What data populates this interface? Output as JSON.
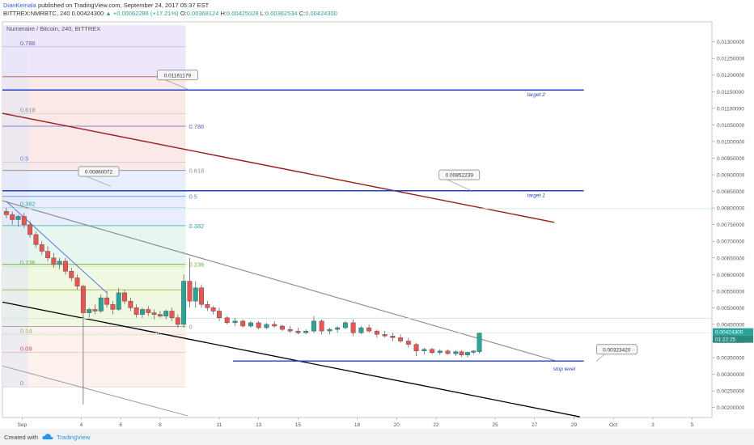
{
  "header": {
    "author": "DianKemala",
    "published": " published on TradingView.com, September 24, 2017 05:37 EST",
    "symbol": "BITTREX:NMRBTC, 240",
    "last": "0.00424300",
    "change": "▲ +0.00062286 (+17.21%)",
    "o_label": "O:",
    "o_value": "0.00368124",
    "h_label": "H:",
    "h_value": "0.00425028",
    "l_label": "L:",
    "l_value": "0.00362534",
    "c_label": "C:",
    "c_value": "0.00424300"
  },
  "footer": {
    "created": "Created with",
    "brand": "TradingView"
  },
  "colors": {
    "up": "#26a69a",
    "down": "#ef5350",
    "target": "#1e3fd0",
    "red_trend": "#9a1c1c"
  },
  "chart_data": {
    "type": "candlestick",
    "title": "Numeraire / Bitcoin, 240, BITTREX",
    "ylim": [
      0.0017,
      0.0136
    ],
    "x_range_days": [
      0,
      36
    ],
    "x_ticks": [
      {
        "day": 1,
        "label": "Sep"
      },
      {
        "day": 4,
        "label": "4"
      },
      {
        "day": 6,
        "label": "6"
      },
      {
        "day": 8,
        "label": "8"
      },
      {
        "day": 11,
        "label": "11"
      },
      {
        "day": 13,
        "label": "13"
      },
      {
        "day": 15,
        "label": "15"
      },
      {
        "day": 18,
        "label": "18"
      },
      {
        "day": 20,
        "label": "20"
      },
      {
        "day": 22,
        "label": "22"
      },
      {
        "day": 25,
        "label": "25"
      },
      {
        "day": 27,
        "label": "27"
      },
      {
        "day": 29,
        "label": "29"
      },
      {
        "day": 31,
        "label": "Oct"
      },
      {
        "day": 33,
        "label": "3"
      },
      {
        "day": 35,
        "label": "5"
      }
    ],
    "y_ticks": [
      "0.01300000",
      "0.01250000",
      "0.01200000",
      "0.01150000",
      "0.01100000",
      "0.01050000",
      "0.01000000",
      "0.00950000",
      "0.00900000",
      "0.00850000",
      "0.00800000",
      "0.00750000",
      "0.00700000",
      "0.00650000",
      "0.00600000",
      "0.00550000",
      "0.00500000",
      "0.00450000",
      "0.00400000",
      "0.00350000",
      "0.00300000",
      "0.00250000",
      "0.00200000"
    ],
    "last_price_label": "0.00424300",
    "countdown_label": "01:22:25",
    "candles": [
      {
        "d": 0.2,
        "o": 0.0079,
        "h": 0.008,
        "l": 0.0077,
        "c": 0.0078
      },
      {
        "d": 0.5,
        "o": 0.0078,
        "h": 0.0079,
        "l": 0.0075,
        "c": 0.00765
      },
      {
        "d": 0.8,
        "o": 0.00765,
        "h": 0.0078,
        "l": 0.00745,
        "c": 0.00775
      },
      {
        "d": 1.1,
        "o": 0.00775,
        "h": 0.00785,
        "l": 0.0074,
        "c": 0.0075
      },
      {
        "d": 1.4,
        "o": 0.0075,
        "h": 0.0076,
        "l": 0.0071,
        "c": 0.0072
      },
      {
        "d": 1.7,
        "o": 0.0072,
        "h": 0.0073,
        "l": 0.0068,
        "c": 0.0069
      },
      {
        "d": 2.0,
        "o": 0.0069,
        "h": 0.007,
        "l": 0.0066,
        "c": 0.0067
      },
      {
        "d": 2.3,
        "o": 0.0067,
        "h": 0.00685,
        "l": 0.0064,
        "c": 0.0065
      },
      {
        "d": 2.6,
        "o": 0.0065,
        "h": 0.00665,
        "l": 0.0062,
        "c": 0.0063
      },
      {
        "d": 2.9,
        "o": 0.0063,
        "h": 0.0065,
        "l": 0.00615,
        "c": 0.0064
      },
      {
        "d": 3.2,
        "o": 0.0064,
        "h": 0.0065,
        "l": 0.006,
        "c": 0.0061
      },
      {
        "d": 3.5,
        "o": 0.0061,
        "h": 0.0062,
        "l": 0.0058,
        "c": 0.0059
      },
      {
        "d": 3.8,
        "o": 0.0059,
        "h": 0.006,
        "l": 0.00555,
        "c": 0.00565
      },
      {
        "d": 4.1,
        "o": 0.00565,
        "h": 0.0057,
        "l": 0.0021,
        "c": 0.00485
      },
      {
        "d": 4.4,
        "o": 0.00485,
        "h": 0.005,
        "l": 0.0047,
        "c": 0.00495
      },
      {
        "d": 4.7,
        "o": 0.00495,
        "h": 0.0051,
        "l": 0.0048,
        "c": 0.0049
      },
      {
        "d": 5.0,
        "o": 0.0049,
        "h": 0.0054,
        "l": 0.00485,
        "c": 0.0053
      },
      {
        "d": 5.3,
        "o": 0.0053,
        "h": 0.0055,
        "l": 0.005,
        "c": 0.0051
      },
      {
        "d": 5.6,
        "o": 0.0051,
        "h": 0.0052,
        "l": 0.0048,
        "c": 0.00495
      },
      {
        "d": 5.9,
        "o": 0.00495,
        "h": 0.0056,
        "l": 0.0049,
        "c": 0.00545
      },
      {
        "d": 6.2,
        "o": 0.00545,
        "h": 0.00555,
        "l": 0.0051,
        "c": 0.0052
      },
      {
        "d": 6.5,
        "o": 0.0052,
        "h": 0.0053,
        "l": 0.0049,
        "c": 0.005
      },
      {
        "d": 6.8,
        "o": 0.005,
        "h": 0.0051,
        "l": 0.0047,
        "c": 0.0048
      },
      {
        "d": 7.1,
        "o": 0.0048,
        "h": 0.005,
        "l": 0.0047,
        "c": 0.00495
      },
      {
        "d": 7.4,
        "o": 0.00495,
        "h": 0.00505,
        "l": 0.00475,
        "c": 0.00485
      },
      {
        "d": 7.7,
        "o": 0.00485,
        "h": 0.00495,
        "l": 0.00465,
        "c": 0.0048
      },
      {
        "d": 8.0,
        "o": 0.0048,
        "h": 0.0049,
        "l": 0.0047,
        "c": 0.00475
      },
      {
        "d": 8.3,
        "o": 0.00475,
        "h": 0.00495,
        "l": 0.00465,
        "c": 0.0049
      },
      {
        "d": 8.6,
        "o": 0.0049,
        "h": 0.005,
        "l": 0.0046,
        "c": 0.0047
      },
      {
        "d": 8.9,
        "o": 0.0047,
        "h": 0.0048,
        "l": 0.0044,
        "c": 0.0045
      },
      {
        "d": 9.2,
        "o": 0.0045,
        "h": 0.006,
        "l": 0.0044,
        "c": 0.0058
      },
      {
        "d": 9.5,
        "o": 0.0058,
        "h": 0.0065,
        "l": 0.005,
        "c": 0.0052
      },
      {
        "d": 9.8,
        "o": 0.0052,
        "h": 0.0058,
        "l": 0.005,
        "c": 0.0056
      },
      {
        "d": 10.1,
        "o": 0.0056,
        "h": 0.0057,
        "l": 0.005,
        "c": 0.0051
      },
      {
        "d": 10.4,
        "o": 0.0051,
        "h": 0.0052,
        "l": 0.0049,
        "c": 0.005
      },
      {
        "d": 10.7,
        "o": 0.005,
        "h": 0.00505,
        "l": 0.0048,
        "c": 0.0049
      },
      {
        "d": 11.0,
        "o": 0.0049,
        "h": 0.005,
        "l": 0.0046,
        "c": 0.0047
      },
      {
        "d": 11.4,
        "o": 0.0047,
        "h": 0.00475,
        "l": 0.0045,
        "c": 0.00455
      },
      {
        "d": 11.8,
        "o": 0.00455,
        "h": 0.0047,
        "l": 0.00445,
        "c": 0.0046
      },
      {
        "d": 12.2,
        "o": 0.0046,
        "h": 0.00465,
        "l": 0.0044,
        "c": 0.00445
      },
      {
        "d": 12.6,
        "o": 0.00445,
        "h": 0.0046,
        "l": 0.0044,
        "c": 0.00455
      },
      {
        "d": 13.0,
        "o": 0.00455,
        "h": 0.0046,
        "l": 0.00435,
        "c": 0.0044
      },
      {
        "d": 13.4,
        "o": 0.0044,
        "h": 0.00455,
        "l": 0.00435,
        "c": 0.0045
      },
      {
        "d": 13.8,
        "o": 0.0045,
        "h": 0.0046,
        "l": 0.0044,
        "c": 0.00445
      },
      {
        "d": 14.2,
        "o": 0.00445,
        "h": 0.0045,
        "l": 0.0043,
        "c": 0.00435
      },
      {
        "d": 14.6,
        "o": 0.00435,
        "h": 0.00445,
        "l": 0.00425,
        "c": 0.0043
      },
      {
        "d": 15.0,
        "o": 0.0043,
        "h": 0.0044,
        "l": 0.0042,
        "c": 0.00425
      },
      {
        "d": 15.4,
        "o": 0.00425,
        "h": 0.00435,
        "l": 0.0042,
        "c": 0.0043
      },
      {
        "d": 15.8,
        "o": 0.0043,
        "h": 0.00475,
        "l": 0.00425,
        "c": 0.0046
      },
      {
        "d": 16.2,
        "o": 0.0046,
        "h": 0.00465,
        "l": 0.0042,
        "c": 0.0043
      },
      {
        "d": 16.6,
        "o": 0.0043,
        "h": 0.0044,
        "l": 0.0042,
        "c": 0.00435
      },
      {
        "d": 17.0,
        "o": 0.00435,
        "h": 0.00445,
        "l": 0.00425,
        "c": 0.0044
      },
      {
        "d": 17.4,
        "o": 0.0044,
        "h": 0.0046,
        "l": 0.00435,
        "c": 0.00455
      },
      {
        "d": 17.8,
        "o": 0.00455,
        "h": 0.00465,
        "l": 0.00415,
        "c": 0.00425
      },
      {
        "d": 18.2,
        "o": 0.00425,
        "h": 0.00445,
        "l": 0.0042,
        "c": 0.0044
      },
      {
        "d": 18.6,
        "o": 0.0044,
        "h": 0.0045,
        "l": 0.00425,
        "c": 0.0043
      },
      {
        "d": 19.0,
        "o": 0.0043,
        "h": 0.00435,
        "l": 0.0041,
        "c": 0.0042
      },
      {
        "d": 19.4,
        "o": 0.0042,
        "h": 0.0043,
        "l": 0.0041,
        "c": 0.00415
      },
      {
        "d": 19.8,
        "o": 0.00415,
        "h": 0.00425,
        "l": 0.004,
        "c": 0.0041
      },
      {
        "d": 20.2,
        "o": 0.0041,
        "h": 0.0042,
        "l": 0.00395,
        "c": 0.004
      },
      {
        "d": 20.6,
        "o": 0.004,
        "h": 0.0041,
        "l": 0.0038,
        "c": 0.0039
      },
      {
        "d": 21.0,
        "o": 0.0039,
        "h": 0.00395,
        "l": 0.00355,
        "c": 0.0037
      },
      {
        "d": 21.4,
        "o": 0.0037,
        "h": 0.0038,
        "l": 0.0036,
        "c": 0.00375
      },
      {
        "d": 21.8,
        "o": 0.00375,
        "h": 0.0038,
        "l": 0.0036,
        "c": 0.00365
      },
      {
        "d": 22.2,
        "o": 0.00365,
        "h": 0.00375,
        "l": 0.00358,
        "c": 0.0037
      },
      {
        "d": 22.6,
        "o": 0.0037,
        "h": 0.00375,
        "l": 0.0036,
        "c": 0.00362
      },
      {
        "d": 23.0,
        "o": 0.00362,
        "h": 0.00372,
        "l": 0.00355,
        "c": 0.00368
      },
      {
        "d": 23.3,
        "o": 0.00368,
        "h": 0.00372,
        "l": 0.00352,
        "c": 0.00358
      },
      {
        "d": 23.6,
        "o": 0.00358,
        "h": 0.00368,
        "l": 0.0035,
        "c": 0.00366
      },
      {
        "d": 23.9,
        "o": 0.00366,
        "h": 0.00372,
        "l": 0.0036,
        "c": 0.0037
      },
      {
        "d": 24.2,
        "o": 0.00368,
        "h": 0.00425,
        "l": 0.00362,
        "c": 0.00424
      }
    ],
    "fib_levels_left": [
      {
        "label": "0.786",
        "price": 0.01285
      },
      {
        "label": "0.618",
        "price": 0.01084
      },
      {
        "label": "0.5",
        "price": 0.00938
      },
      {
        "label": "0.382",
        "price": 0.00802
      },
      {
        "label": "0.236",
        "price": 0.00625
      },
      {
        "label": "0.14",
        "price": 0.0042
      },
      {
        "label": "0.09",
        "price": 0.00366
      },
      {
        "label": "0",
        "price": 0.00262
      }
    ],
    "fib_levels_mid": [
      {
        "label": "1",
        "price": 0.01195
      },
      {
        "label": "0.786",
        "price": 0.01046
      },
      {
        "label": "0.618",
        "price": 0.00913
      },
      {
        "label": "0.5",
        "price": 0.00835
      },
      {
        "label": "0.382",
        "price": 0.00747
      },
      {
        "label": "0.236",
        "price": 0.00631
      },
      {
        "label": "0.14",
        "price": 0.00554
      },
      {
        "label": "0",
        "price": 0.00444
      }
    ],
    "target_lines": [
      {
        "label": "target 2",
        "price": 0.01155,
        "x_end_day": 29.5
      },
      {
        "label": "target 1",
        "price": 0.00852,
        "x_end_day": 29.5
      },
      {
        "label": "stop level",
        "price": 0.0034,
        "x_start_day": 11.7,
        "x_end_day": 29.5
      }
    ],
    "callouts": [
      "0.01161179",
      "0.00860072",
      "0.00852239",
      "0.00323420"
    ]
  }
}
